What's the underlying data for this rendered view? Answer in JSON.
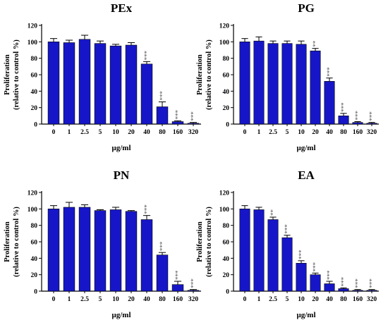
{
  "chart_data": [
    {
      "type": "bar",
      "title": "PEx",
      "ylabel_line1": "Proliferation",
      "ylabel_line2": "(relative to control %)",
      "xlabel": "μg/ml",
      "categories": [
        "0",
        "1",
        "2.5",
        "5",
        "10",
        "20",
        "40",
        "80",
        "160",
        "320"
      ],
      "values": [
        100,
        99,
        103,
        98,
        95,
        96,
        73,
        21,
        3,
        1
      ],
      "errors": [
        4,
        3,
        5,
        3,
        2,
        3,
        3,
        6,
        1,
        1
      ],
      "significance": [
        "",
        "",
        "",
        "",
        "",
        "",
        "***",
        "***",
        "***",
        "***"
      ],
      "yticks": [
        "0",
        "20",
        "40",
        "60",
        "80",
        "100",
        "120"
      ],
      "ylim": [
        0,
        120
      ],
      "bar_color": "#1616c8"
    },
    {
      "type": "bar",
      "title": "PG",
      "ylabel_line1": "Proliferation",
      "ylabel_line2": "(relative to control %)",
      "xlabel": "μg/ml",
      "categories": [
        "0",
        "1",
        "2.5",
        "5",
        "10",
        "20",
        "40",
        "80",
        "160",
        "320"
      ],
      "values": [
        100,
        101,
        98,
        98,
        97,
        89,
        52,
        10,
        2,
        1
      ],
      "errors": [
        4,
        5,
        3,
        3,
        4,
        3,
        4,
        3,
        1,
        1
      ],
      "significance": [
        "",
        "",
        "",
        "",
        "",
        "**",
        "***",
        "***",
        "***",
        "***"
      ],
      "yticks": [
        "0",
        "20",
        "40",
        "60",
        "80",
        "100",
        "120"
      ],
      "ylim": [
        0,
        120
      ],
      "bar_color": "#1616c8"
    },
    {
      "type": "bar",
      "title": "PN",
      "ylabel_line1": "Proliferation",
      "ylabel_line2": "(relative to control %)",
      "xlabel": "μg/ml",
      "categories": [
        "0",
        "1",
        "2.5",
        "5",
        "10",
        "20",
        "40",
        "80",
        "160",
        "320"
      ],
      "values": [
        100,
        102,
        102,
        98,
        99,
        97,
        87,
        44,
        8,
        1
      ],
      "errors": [
        4,
        6,
        3,
        1,
        3,
        1,
        5,
        3,
        4,
        1
      ],
      "significance": [
        "",
        "",
        "",
        "",
        "",
        "",
        "***",
        "***",
        "***",
        "***"
      ],
      "yticks": [
        "0",
        "20",
        "40",
        "60",
        "80",
        "100",
        "120"
      ],
      "ylim": [
        0,
        120
      ],
      "bar_color": "#1616c8"
    },
    {
      "type": "bar",
      "title": "EA",
      "ylabel_line1": "Proliferation",
      "ylabel_line2": "(relative to control %)",
      "xlabel": "μg/ml",
      "categories": [
        "0",
        "1",
        "2.5",
        "5",
        "10",
        "20",
        "40",
        "80",
        "160",
        "320"
      ],
      "values": [
        100,
        99,
        87,
        65,
        34,
        20,
        9,
        3,
        1,
        1
      ],
      "errors": [
        4,
        3,
        3,
        3,
        3,
        2,
        3,
        1,
        1,
        1
      ],
      "significance": [
        "",
        "",
        "**",
        "***",
        "***",
        "***",
        "***",
        "***",
        "***",
        "***"
      ],
      "yticks": [
        "0",
        "20",
        "40",
        "60",
        "80",
        "100",
        "120"
      ],
      "ylim": [
        0,
        120
      ],
      "bar_color": "#1616c8"
    }
  ]
}
